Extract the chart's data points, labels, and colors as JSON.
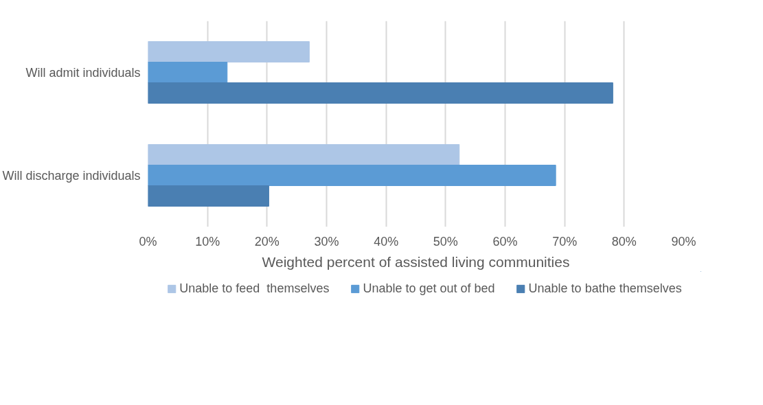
{
  "chart_data": {
    "type": "bar",
    "orientation": "horizontal",
    "categories": [
      "Will admit individuals",
      "Will discharge individuals"
    ],
    "series": [
      {
        "name": "Unable to feed  themselves",
        "color": "#adc6e6",
        "values": [
          27.1,
          52.3
        ]
      },
      {
        "name": "Unable to get out of bed",
        "color": "#5b9bd5",
        "values": [
          13.3,
          68.5
        ]
      },
      {
        "name": "Unable to bathe themselves",
        "color": "#4a7fb2",
        "values": [
          78.1,
          20.3
        ]
      }
    ],
    "xlabel": "Weighted percent of assisted living communities",
    "xlim": [
      0,
      90
    ],
    "xticks": [
      {
        "value": 0,
        "label": "0%"
      },
      {
        "value": 10,
        "label": "10%"
      },
      {
        "value": 20,
        "label": "20%"
      },
      {
        "value": 30,
        "label": "30%"
      },
      {
        "value": 40,
        "label": "40%"
      },
      {
        "value": 50,
        "label": "50%"
      },
      {
        "value": 60,
        "label": "60%"
      },
      {
        "value": 70,
        "label": "70%"
      },
      {
        "value": 80,
        "label": "80%"
      },
      {
        "value": 90,
        "label": "90%"
      }
    ],
    "grid": "x",
    "legend": "bottom"
  }
}
